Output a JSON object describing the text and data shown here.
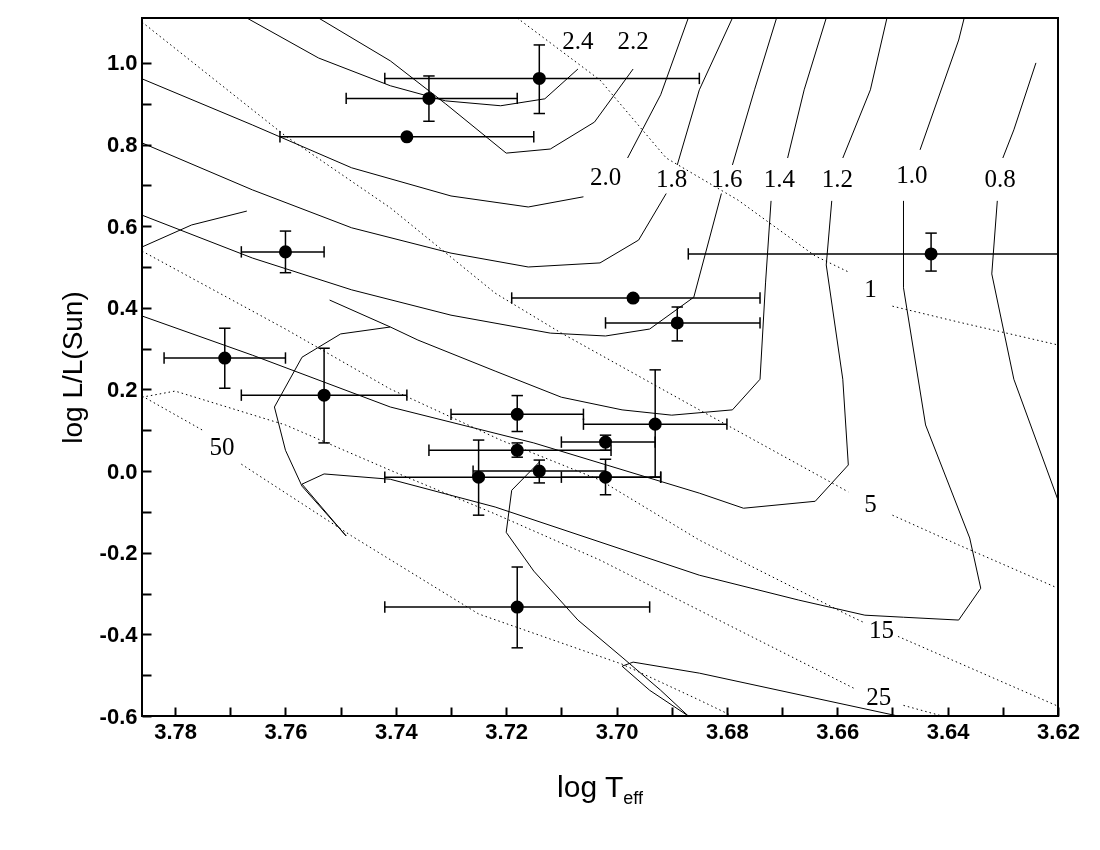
{
  "chart_data": {
    "type": "scatter",
    "xlabel": "log T$_{eff}$",
    "ylabel": "log L/L(Sun)",
    "xlim": [
      3.786,
      3.62
    ],
    "ylim": [
      -0.6,
      1.11
    ],
    "xticks": [
      3.78,
      {
        "value": 3.77,
        "label": null
      },
      3.76,
      {
        "value": 3.75,
        "label": null
      },
      3.74,
      {
        "value": 3.73,
        "label": null
      },
      3.72,
      {
        "value": 3.71,
        "label": null
      },
      {
        "value": 3.7,
        "label": "3.70"
      },
      {
        "value": 3.69,
        "label": null
      },
      3.68,
      {
        "value": 3.67,
        "label": null
      },
      3.66,
      {
        "value": 3.65,
        "label": null
      },
      3.64,
      {
        "value": 3.63,
        "label": null
      },
      3.62
    ],
    "yticks": [
      {
        "value": -0.6,
        "label": "-0.6"
      },
      {
        "value": -0.5,
        "label": null
      },
      {
        "value": -0.4,
        "label": "-0.4"
      },
      {
        "value": -0.3,
        "label": null
      },
      {
        "value": -0.2,
        "label": "-0.2"
      },
      {
        "value": -0.1,
        "label": null
      },
      {
        "value": 0,
        "label": "0.0"
      },
      {
        "value": 0.1,
        "label": null
      },
      0.2,
      {
        "value": 0.3,
        "label": null
      },
      0.4,
      {
        "value": 0.5,
        "label": null
      },
      0.6,
      {
        "value": 0.7,
        "label": null
      },
      0.8,
      {
        "value": 0.9,
        "label": null
      },
      {
        "value": 1,
        "label": "1.0"
      }
    ],
    "series": [
      {
        "type": "line",
        "name": "2.4",
        "line_style": "solid",
        "color": "#000000",
        "x": [
          3.767,
          3.754,
          3.741,
          3.731,
          3.721,
          3.713,
          3.707
        ],
        "values": [
          1.11,
          1.012,
          0.944,
          0.907,
          0.895,
          0.912,
          0.985
        ]
      },
      {
        "type": "line",
        "name": "2.2",
        "line_style": "solid",
        "color": "#000000",
        "x": [
          3.754,
          3.741,
          3.731,
          3.72,
          3.712,
          3.704,
          3.697
        ],
        "values": [
          1.11,
          1.005,
          0.9,
          0.779,
          0.789,
          0.855,
          0.985
        ]
      },
      {
        "type": "line",
        "name": "2.0",
        "line_style": "solid",
        "color": "#000000",
        "x": [
          3.786,
          3.766,
          3.748,
          3.73,
          3.716,
          3.706,
          null,
          3.698,
          3.692,
          3.687
        ],
        "values": [
          0.961,
          0.848,
          0.743,
          0.674,
          0.647,
          0.672,
          null,
          0.767,
          0.922,
          1.11
        ]
      },
      {
        "type": "line",
        "name": "1.8",
        "line_style": "solid",
        "color": "#000000",
        "x": [
          3.786,
          3.766,
          3.748,
          3.73,
          3.716,
          3.703,
          3.696,
          3.691,
          null,
          3.689,
          3.685,
          3.679
        ],
        "values": [
          0.804,
          0.689,
          0.596,
          0.534,
          0.5,
          0.51,
          0.566,
          0.68,
          null,
          0.75,
          0.934,
          1.11
        ]
      },
      {
        "type": "line",
        "name": "1.6",
        "line_style": "solid",
        "color": "#000000",
        "x": [
          3.786,
          3.766,
          3.748,
          3.73,
          3.712,
          3.702,
          3.694,
          3.686,
          3.681,
          null,
          3.679,
          3.675,
          3.671
        ],
        "values": [
          0.627,
          0.522,
          0.444,
          0.382,
          0.338,
          0.331,
          0.348,
          0.426,
          0.68,
          null,
          0.75,
          0.934,
          1.11
        ]
      },
      {
        "type": "line",
        "name": "1.4",
        "line_style": "solid",
        "color": "#000000",
        "x": [
          3.752,
          3.741,
          3.736,
          3.722,
          3.71,
          3.699,
          3.69,
          3.679,
          3.674,
          3.673,
          3.672,
          null,
          3.669,
          3.666,
          3.662
        ],
        "values": [
          0.419,
          0.353,
          0.321,
          0.245,
          0.181,
          0.15,
          0.137,
          0.15,
          0.225,
          0.461,
          0.662,
          null,
          0.767,
          0.934,
          1.11
        ]
      },
      {
        "type": "line",
        "name": "1.2",
        "line_style": "solid",
        "color": "#000000",
        "x": [
          3.786,
          3.766,
          3.741,
          3.715,
          3.685,
          3.677,
          3.664,
          3.658,
          3.659,
          3.662,
          3.661,
          null,
          3.659,
          3.654,
          3.651
        ],
        "values": [
          0.38,
          0.284,
          0.157,
          0.069,
          -0.054,
          -0.091,
          -0.074,
          0.015,
          0.225,
          0.505,
          0.662,
          null,
          0.767,
          0.934,
          1.11
        ]
      },
      {
        "type": "line",
        "name": "1.0",
        "line_style": "solid",
        "color": "#000000",
        "x": [
          3.741,
          3.75,
          3.757,
          3.762,
          3.76,
          3.757,
          3.749,
          3.757,
          3.753,
          3.741,
          3.722,
          3.685,
          3.667,
          3.655,
          3.648,
          3.638,
          3.634,
          3.636,
          3.644,
          3.648,
          3.648,
          null,
          3.645,
          3.638,
          3.637
        ],
        "values": [
          0.353,
          0.336,
          0.279,
          0.157,
          0.051,
          -0.037,
          -0.159,
          -0.032,
          -0.007,
          -0.02,
          -0.088,
          -0.255,
          -0.316,
          -0.353,
          -0.358,
          -0.365,
          -0.287,
          -0.164,
          0.113,
          0.449,
          0.662,
          null,
          0.787,
          1.056,
          1.11
        ]
      },
      {
        "type": "line",
        "line_style": "solid",
        "color": "#000000",
        "x": [
          3.714,
          3.719,
          3.72,
          3.715,
          3.707,
          3.699,
          3.692,
          3.687
        ],
        "values": [
          0.022,
          -0.047,
          -0.15,
          -0.245,
          -0.365,
          -0.456,
          -0.537,
          -0.6
        ]
      },
      {
        "type": "line",
        "line_style": "solid",
        "color": "#000000",
        "x": [
          3.649,
          3.685,
          3.697,
          3.699,
          3.694,
          3.687
        ],
        "values": [
          -0.6,
          -0.495,
          -0.468,
          -0.478,
          -0.537,
          -0.6
        ]
      },
      {
        "type": "line",
        "name": "0.8",
        "line_style": "solid",
        "color": "#000000",
        "x": [
          3.62,
          3.628,
          3.632,
          3.631,
          null,
          3.63,
          3.628,
          3.624
        ],
        "values": [
          -0.071,
          0.225,
          0.483,
          0.662,
          null,
          0.767,
          0.836,
          1.0
        ]
      },
      {
        "type": "line",
        "line_style": "solid",
        "color": "#000000",
        "x": [
          3.786,
          3.777,
          3.767
        ],
        "values": [
          0.549,
          0.603,
          0.637
        ]
      },
      {
        "type": "line",
        "name": "1",
        "line_style": "dotted",
        "color": "#000000",
        "x": [
          3.718,
          3.703,
          3.691,
          3.678,
          3.664,
          3.658,
          null,
          3.65,
          3.638,
          3.62
        ],
        "values": [
          1.11,
          0.958,
          0.767,
          0.664,
          0.527,
          0.488,
          null,
          0.404,
          0.365,
          0.309
        ]
      },
      {
        "type": "line",
        "name": "5",
        "line_style": "dotted",
        "color": "#000000",
        "x": [
          3.786,
          3.76,
          3.741,
          3.722,
          3.71,
          3.685,
          3.658,
          null,
          3.65,
          3.638,
          3.62
        ],
        "values": [
          1.1,
          0.821,
          0.645,
          0.436,
          0.338,
          0.15,
          -0.051,
          null,
          -0.108,
          -0.181,
          -0.287
        ]
      },
      {
        "type": "line",
        "name": "15",
        "line_style": "dotted",
        "color": "#000000",
        "x": [
          3.786,
          3.76,
          3.741,
          3.721,
          3.703,
          3.685,
          3.658,
          3.655,
          null,
          3.649,
          3.62
        ],
        "values": [
          0.539,
          0.348,
          0.201,
          0.076,
          -0.022,
          -0.169,
          -0.353,
          -0.372,
          null,
          -0.405,
          -0.576
        ]
      },
      {
        "type": "line",
        "name": "25",
        "line_style": "dotted",
        "color": "#000000",
        "x": [
          3.786,
          3.78,
          3.76,
          3.741,
          3.722,
          3.703,
          3.685,
          3.657,
          null,
          3.648,
          3.641
        ],
        "values": [
          0.181,
          0.196,
          0.113,
          0.002,
          -0.105,
          -0.218,
          -0.341,
          -0.532,
          null,
          -0.574,
          -0.6
        ]
      },
      {
        "type": "line",
        "name": "50",
        "line_style": "dotted",
        "color": "#000000",
        "x": [
          3.786,
          3.775,
          null,
          3.768,
          3.748,
          3.725,
          3.699,
          3.685,
          3.679
        ],
        "values": [
          0.184,
          0.1,
          null,
          0.017,
          -0.159,
          -0.35,
          -0.473,
          -0.561,
          -0.6
        ]
      },
      {
        "type": "scatter",
        "marker": "circle",
        "color": "#000000",
        "x": [
          3.714,
          3.734,
          3.738,
          3.76,
          3.643,
          3.697,
          3.689,
          3.771,
          3.753,
          3.718,
          3.693,
          3.718,
          3.702,
          3.725,
          3.714,
          3.702,
          3.718
        ],
        "values": [
          0.962,
          0.913,
          0.819,
          0.537,
          0.532,
          0.424,
          0.363,
          0.277,
          0.186,
          0.139,
          0.115,
          0.051,
          0.071,
          -0.015,
          0.0,
          -0.015,
          -0.333
        ],
        "errors": [
          [
            0.876,
            1.044
          ],
          [
            0.857,
            0.968
          ],
          null,
          [
            0.486,
            0.588
          ],
          [
            0.49,
            0.583
          ],
          null,
          [
            0.319,
            0.402
          ],
          [
            0.203,
            0.35
          ],
          [
            0.069,
            0.301
          ],
          [
            0.097,
            0.185
          ],
          [
            -0.015,
            0.248
          ],
          [
            0.034,
            0.069
          ],
          [
            0.051,
            0.088
          ],
          [
            -0.108,
            0.076
          ],
          [
            -0.029,
            0.027
          ],
          [
            -0.058,
            0.029
          ],
          [
            -0.433,
            -0.235
          ]
        ],
        "xerrors": [
          [
            3.685,
            3.742
          ],
          [
            3.718,
            3.749
          ],
          [
            3.715,
            3.761
          ],
          [
            3.753,
            3.768
          ],
          [
            3.62,
            3.687
          ],
          [
            3.674,
            3.719
          ],
          [
            3.674,
            3.702
          ],
          [
            3.76,
            3.782
          ],
          [
            3.738,
            3.768
          ],
          [
            3.706,
            3.73
          ],
          [
            3.68,
            3.706
          ],
          [
            3.701,
            3.734
          ],
          [
            3.693,
            3.71
          ],
          [
            3.692,
            3.742
          ],
          [
            3.702,
            3.726
          ],
          [
            3.692,
            3.71
          ],
          [
            3.694,
            3.742
          ]
        ]
      }
    ]
  }
}
